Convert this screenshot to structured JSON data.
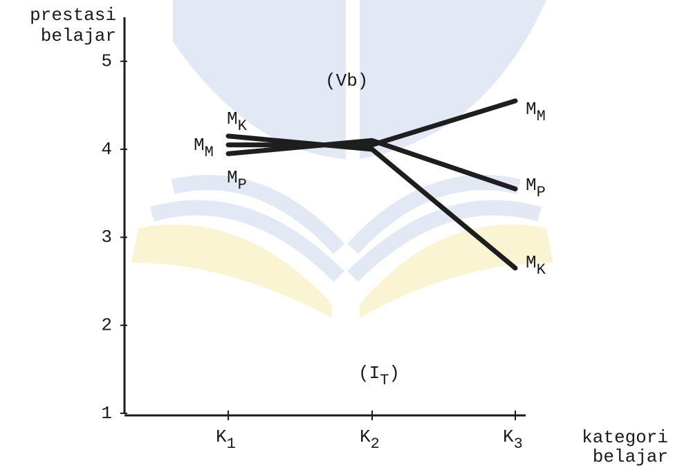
{
  "chart_data": {
    "type": "line",
    "y_label_lines": [
      "prestasi",
      "belajar"
    ],
    "x_label_lines": [
      "kategori",
      "belajar"
    ],
    "annotations": [
      {
        "text": "(Vb)"
      },
      {
        "text": "(I",
        "sub": "T",
        "after": ")"
      }
    ],
    "categories": [
      "K1",
      "K2",
      "K3"
    ],
    "series": [
      {
        "name": "MK",
        "color": "#1e1e1e",
        "values": [
          4.15,
          4.0,
          2.65
        ]
      },
      {
        "name": "MM",
        "color": "#1e1e1e",
        "values": [
          4.05,
          4.05,
          4.55
        ]
      },
      {
        "name": "MP",
        "color": "#1e1e1e",
        "values": [
          3.95,
          4.1,
          3.55
        ]
      }
    ],
    "ylim": [
      1,
      5.5
    ],
    "yticks": [
      1,
      2,
      3,
      4,
      5
    ]
  }
}
